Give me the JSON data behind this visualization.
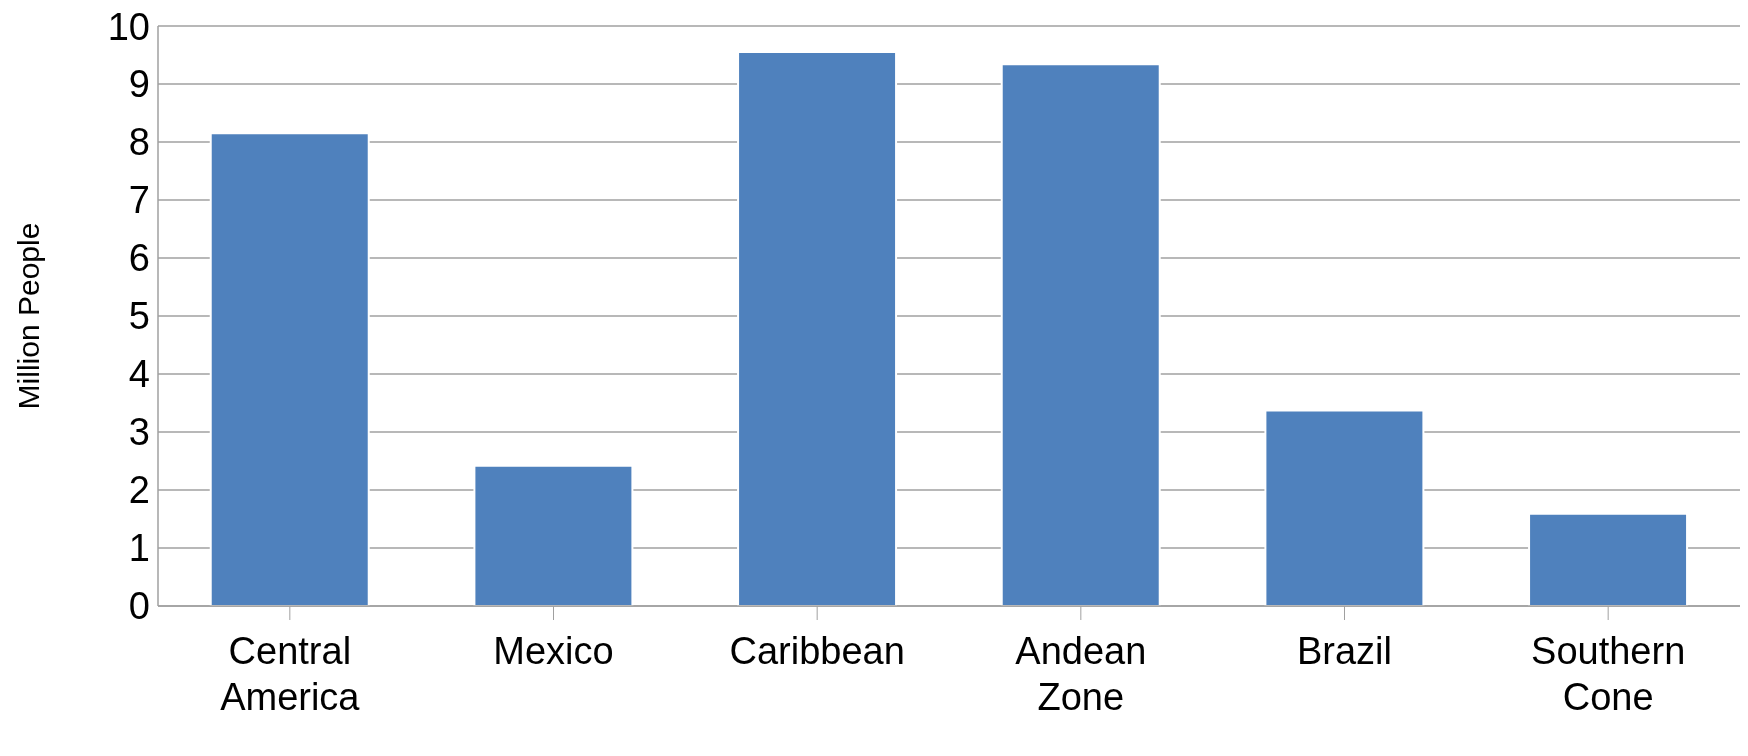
{
  "chart_data": {
    "type": "bar",
    "ylabel": "Million People",
    "categories": [
      "Central America",
      "Mexico",
      "Caribbean",
      "Andean Zone",
      "Brazil",
      "Southern Cone"
    ],
    "values": [
      8.15,
      2.42,
      9.55,
      9.34,
      3.37,
      1.59
    ],
    "color": "#4f81bd",
    "ylim": [
      0,
      10
    ],
    "yticks": [
      0,
      1,
      2,
      3,
      4,
      5,
      6,
      7,
      8,
      9,
      10
    ],
    "grid": "y"
  }
}
